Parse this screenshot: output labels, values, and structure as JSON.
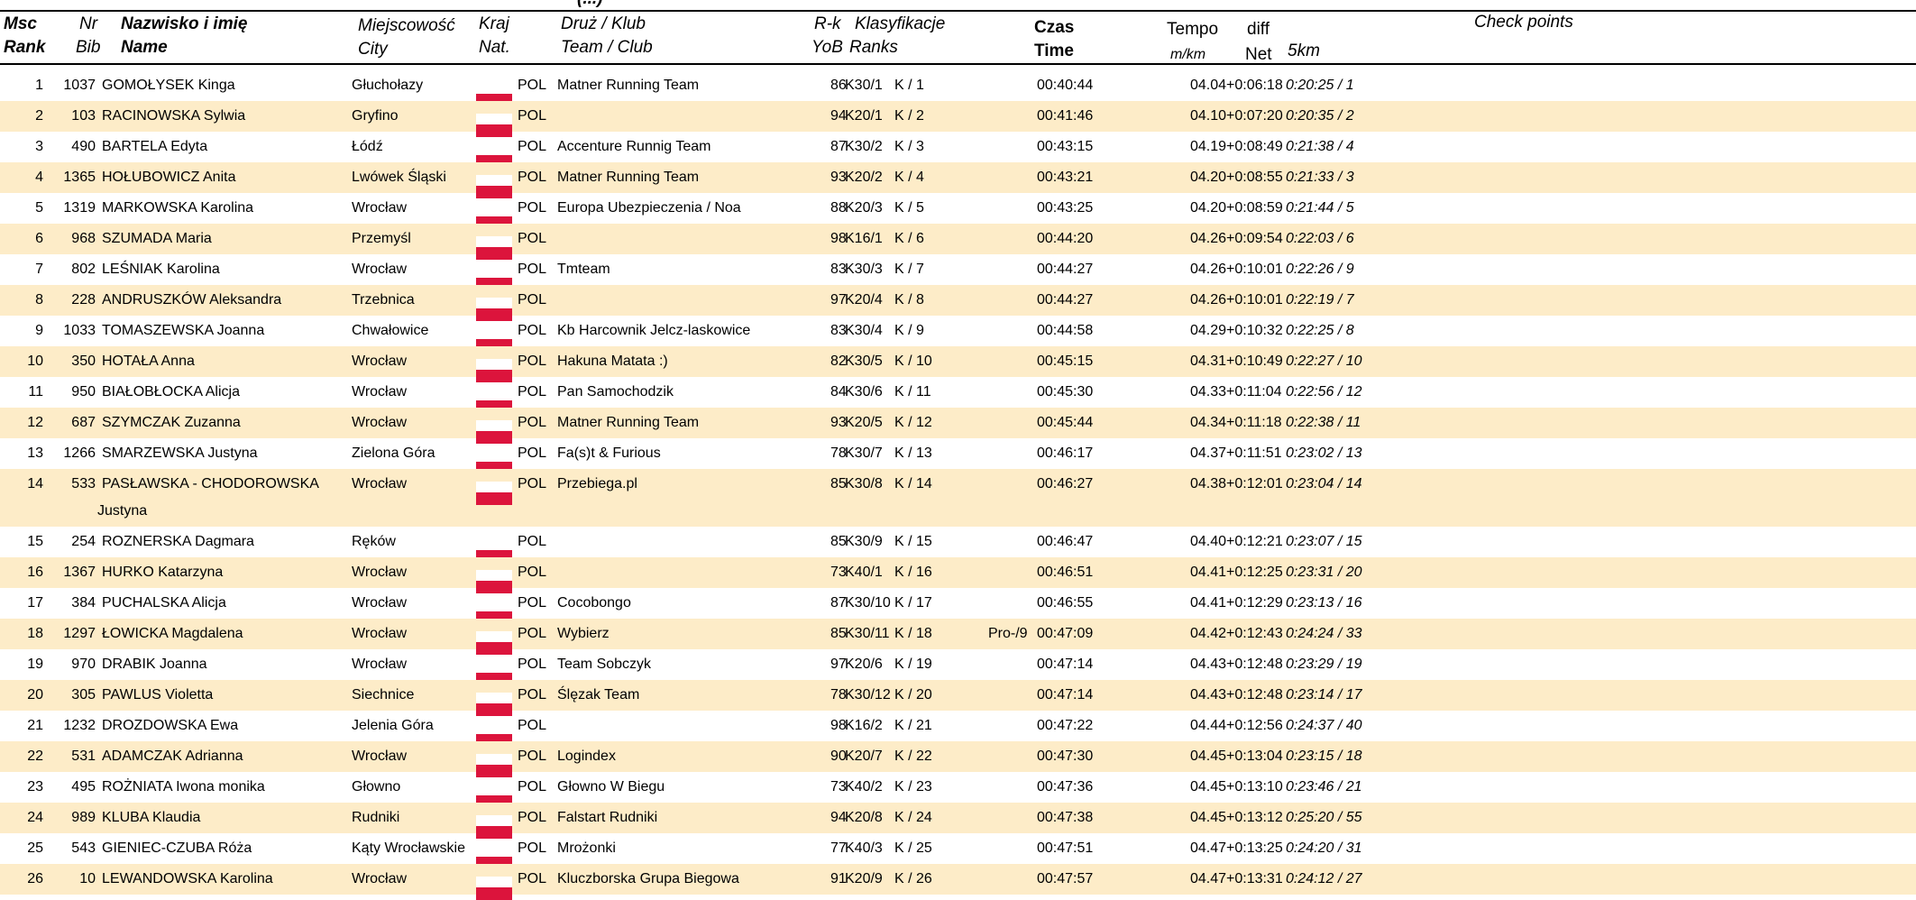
{
  "page_title": "(...)",
  "columns": {
    "msc": "Msc",
    "rank": "Rank",
    "nr": "Nr",
    "bib": "Bib",
    "name_pl": "Nazwisko i imię",
    "name_en": "Name",
    "city_pl": "Miejscowość",
    "city_en": "City",
    "kraj": "Kraj",
    "nat": "Nat.",
    "team_pl": "Druż / Klub",
    "team_en": "Team / Club",
    "rk": "R-k",
    "yob": "YoB",
    "klas": "Klasyfikacje",
    "ranks": "Ranks",
    "czas": "Czas",
    "time": "Time",
    "tempo": "Tempo",
    "mkm": "m/km",
    "diff": "diff",
    "net": "Net",
    "checkpoint": "5km",
    "checkpoints": "Check points"
  },
  "rows": [
    {
      "msc": "1",
      "bib": "1037",
      "name": "GOMOŁYSEK Kinga",
      "city": "Głuchołazy",
      "nat": "POL",
      "team": "Matner Running Team",
      "yob": "86",
      "cat": "K30/1",
      "klas": "K / 1",
      "pro": "",
      "time": "00:40:44",
      "tempo": "04.04",
      "diff": "+0:06:18",
      "cp": "0:20:25 / 1"
    },
    {
      "msc": "2",
      "bib": "103",
      "name": "RACINOWSKA Sylwia",
      "city": "Gryfino",
      "nat": "POL",
      "team": "",
      "yob": "94",
      "cat": "K20/1",
      "klas": "K / 2",
      "pro": "",
      "time": "00:41:46",
      "tempo": "04.10",
      "diff": "+0:07:20",
      "cp": "0:20:35 / 2"
    },
    {
      "msc": "3",
      "bib": "490",
      "name": "BARTELA Edyta",
      "city": "Łódź",
      "nat": "POL",
      "team": "Accenture Runnig Team",
      "yob": "87",
      "cat": "K30/2",
      "klas": "K / 3",
      "pro": "",
      "time": "00:43:15",
      "tempo": "04.19",
      "diff": "+0:08:49",
      "cp": "0:21:38 / 4"
    },
    {
      "msc": "4",
      "bib": "1365",
      "name": "HOŁUBOWICZ Anita",
      "city": "Lwówek Śląski",
      "nat": "POL",
      "team": "Matner Running Team",
      "yob": "93",
      "cat": "K20/2",
      "klas": "K / 4",
      "pro": "",
      "time": "00:43:21",
      "tempo": "04.20",
      "diff": "+0:08:55",
      "cp": "0:21:33 / 3"
    },
    {
      "msc": "5",
      "bib": "1319",
      "name": "MARKOWSKA Karolina",
      "city": "Wrocław",
      "nat": "POL",
      "team": "Europa Ubezpieczenia / Noa",
      "yob": "88",
      "cat": "K20/3",
      "klas": "K / 5",
      "pro": "",
      "time": "00:43:25",
      "tempo": "04.20",
      "diff": "+0:08:59",
      "cp": "0:21:44 / 5"
    },
    {
      "msc": "6",
      "bib": "968",
      "name": "SZUMADA Maria",
      "city": "Przemyśl",
      "nat": "POL",
      "team": "",
      "yob": "98",
      "cat": "K16/1",
      "klas": "K / 6",
      "pro": "",
      "time": "00:44:20",
      "tempo": "04.26",
      "diff": "+0:09:54",
      "cp": "0:22:03 / 6"
    },
    {
      "msc": "7",
      "bib": "802",
      "name": "LEŚNIAK Karolina",
      "city": "Wrocław",
      "nat": "POL",
      "team": "Tmteam",
      "yob": "83",
      "cat": "K30/3",
      "klas": "K / 7",
      "pro": "",
      "time": "00:44:27",
      "tempo": "04.26",
      "diff": "+0:10:01",
      "cp": "0:22:26 / 9"
    },
    {
      "msc": "8",
      "bib": "228",
      "name": "ANDRUSZKÓW Aleksandra",
      "city": "Trzebnica",
      "nat": "POL",
      "team": "",
      "yob": "97",
      "cat": "K20/4",
      "klas": "K / 8",
      "pro": "",
      "time": "00:44:27",
      "tempo": "04.26",
      "diff": "+0:10:01",
      "cp": "0:22:19 / 7"
    },
    {
      "msc": "9",
      "bib": "1033",
      "name": "TOMASZEWSKA Joanna",
      "city": "Chwałowice",
      "nat": "POL",
      "team": "Kb Harcownik Jelcz-laskowice",
      "yob": "83",
      "cat": "K30/4",
      "klas": "K / 9",
      "pro": "",
      "time": "00:44:58",
      "tempo": "04.29",
      "diff": "+0:10:32",
      "cp": "0:22:25 / 8"
    },
    {
      "msc": "10",
      "bib": "350",
      "name": "HOTAŁA Anna",
      "city": "Wrocław",
      "nat": "POL",
      "team": "Hakuna Matata :)",
      "yob": "82",
      "cat": "K30/5",
      "klas": "K / 10",
      "pro": "",
      "time": "00:45:15",
      "tempo": "04.31",
      "diff": "+0:10:49",
      "cp": "0:22:27 / 10"
    },
    {
      "msc": "11",
      "bib": "950",
      "name": "BIAŁOBŁOCKA Alicja",
      "city": "Wrocław",
      "nat": "POL",
      "team": "Pan Samochodzik",
      "yob": "84",
      "cat": "K30/6",
      "klas": "K / 11",
      "pro": "",
      "time": "00:45:30",
      "tempo": "04.33",
      "diff": "+0:11:04",
      "cp": "0:22:56 / 12"
    },
    {
      "msc": "12",
      "bib": "687",
      "name": "SZYMCZAK Zuzanna",
      "city": "Wrocław",
      "nat": "POL",
      "team": "Matner Running Team",
      "yob": "93",
      "cat": "K20/5",
      "klas": "K / 12",
      "pro": "",
      "time": "00:45:44",
      "tempo": "04.34",
      "diff": "+0:11:18",
      "cp": "0:22:38 / 11"
    },
    {
      "msc": "13",
      "bib": "1266",
      "name": "SMARZEWSKA Justyna",
      "city": "Zielona Góra",
      "nat": "POL",
      "team": "Fa(s)t & Furious",
      "yob": "78",
      "cat": "K30/7",
      "klas": "K / 13",
      "pro": "",
      "time": "00:46:17",
      "tempo": "04.37",
      "diff": "+0:11:51",
      "cp": "0:23:02 / 13"
    },
    {
      "msc": "14",
      "bib": "533",
      "name": "PASŁAWSKA - CHODOROWSKA",
      "name2": "Justyna",
      "city": "Wrocław",
      "nat": "POL",
      "team": "Przebiega.pl",
      "yob": "85",
      "cat": "K30/8",
      "klas": "K / 14",
      "pro": "",
      "time": "00:46:27",
      "tempo": "04.38",
      "diff": "+0:12:01",
      "cp": "0:23:04 / 14"
    },
    {
      "msc": "15",
      "bib": "254",
      "name": "ROZNERSKA Dagmara",
      "city": "Ręków",
      "nat": "POL",
      "team": "",
      "yob": "85",
      "cat": "K30/9",
      "klas": "K / 15",
      "pro": "",
      "time": "00:46:47",
      "tempo": "04.40",
      "diff": "+0:12:21",
      "cp": "0:23:07 / 15"
    },
    {
      "msc": "16",
      "bib": "1367",
      "name": "HURKO Katarzyna",
      "city": "Wrocław",
      "nat": "POL",
      "team": "",
      "yob": "73",
      "cat": "K40/1",
      "klas": "K / 16",
      "pro": "",
      "time": "00:46:51",
      "tempo": "04.41",
      "diff": "+0:12:25",
      "cp": "0:23:31 / 20"
    },
    {
      "msc": "17",
      "bib": "384",
      "name": "PUCHALSKA Alicja",
      "city": "Wrocław",
      "nat": "POL",
      "team": "Cocobongo",
      "yob": "87",
      "cat": "K30/10",
      "klas": "K / 17",
      "pro": "",
      "time": "00:46:55",
      "tempo": "04.41",
      "diff": "+0:12:29",
      "cp": "0:23:13 / 16"
    },
    {
      "msc": "18",
      "bib": "1297",
      "name": "ŁOWICKA Magdalena",
      "city": "Wrocław",
      "nat": "POL",
      "team": "Wybierz",
      "yob": "85",
      "cat": "K30/11",
      "klas": "K / 18",
      "pro": "Pro-/9",
      "time": "00:47:09",
      "tempo": "04.42",
      "diff": "+0:12:43",
      "cp": "0:24:24 / 33"
    },
    {
      "msc": "19",
      "bib": "970",
      "name": "DRABIK Joanna",
      "city": "Wrocław",
      "nat": "POL",
      "team": "Team Sobczyk",
      "yob": "97",
      "cat": "K20/6",
      "klas": "K / 19",
      "pro": "",
      "time": "00:47:14",
      "tempo": "04.43",
      "diff": "+0:12:48",
      "cp": "0:23:29 / 19"
    },
    {
      "msc": "20",
      "bib": "305",
      "name": "PAWLUS Violetta",
      "city": "Siechnice",
      "nat": "POL",
      "team": "Ślęzak Team",
      "yob": "78",
      "cat": "K30/12",
      "klas": "K / 20",
      "pro": "",
      "time": "00:47:14",
      "tempo": "04.43",
      "diff": "+0:12:48",
      "cp": "0:23:14 / 17"
    },
    {
      "msc": "21",
      "bib": "1232",
      "name": "DROZDOWSKA Ewa",
      "city": "Jelenia Góra",
      "nat": "POL",
      "team": "",
      "yob": "98",
      "cat": "K16/2",
      "klas": "K / 21",
      "pro": "",
      "time": "00:47:22",
      "tempo": "04.44",
      "diff": "+0:12:56",
      "cp": "0:24:37 / 40"
    },
    {
      "msc": "22",
      "bib": "531",
      "name": "ADAMCZAK Adrianna",
      "city": "Wrocław",
      "nat": "POL",
      "team": "Logindex",
      "yob": "90",
      "cat": "K20/7",
      "klas": "K / 22",
      "pro": "",
      "time": "00:47:30",
      "tempo": "04.45",
      "diff": "+0:13:04",
      "cp": "0:23:15 / 18"
    },
    {
      "msc": "23",
      "bib": "495",
      "name": "ROŻNIATA Iwona monika",
      "city": "Głowno",
      "nat": "POL",
      "team": "Głowno W Biegu",
      "yob": "73",
      "cat": "K40/2",
      "klas": "K / 23",
      "pro": "",
      "time": "00:47:36",
      "tempo": "04.45",
      "diff": "+0:13:10",
      "cp": "0:23:46 / 21"
    },
    {
      "msc": "24",
      "bib": "989",
      "name": "KLUBA Klaudia",
      "city": "Rudniki",
      "nat": "POL",
      "team": "Falstart Rudniki",
      "yob": "94",
      "cat": "K20/8",
      "klas": "K / 24",
      "pro": "",
      "time": "00:47:38",
      "tempo": "04.45",
      "diff": "+0:13:12",
      "cp": "0:25:20 / 55"
    },
    {
      "msc": "25",
      "bib": "543",
      "name": "GIENIEC-CZUBA Róża",
      "city": "Kąty Wrocławskie",
      "nat": "POL",
      "team": "Mrożonki",
      "yob": "77",
      "cat": "K40/3",
      "klas": "K / 25",
      "pro": "",
      "time": "00:47:51",
      "tempo": "04.47",
      "diff": "+0:13:25",
      "cp": "0:24:20 / 31"
    },
    {
      "msc": "26",
      "bib": "10",
      "name": "LEWANDOWSKA Karolina",
      "city": "Wrocław",
      "nat": "POL",
      "team": "Kluczborska Grupa Biegowa",
      "yob": "91",
      "cat": "K20/9",
      "klas": "K / 26",
      "pro": "",
      "time": "00:47:57",
      "tempo": "04.47",
      "diff": "+0:13:31",
      "cp": "0:24:12 / 27"
    }
  ]
}
